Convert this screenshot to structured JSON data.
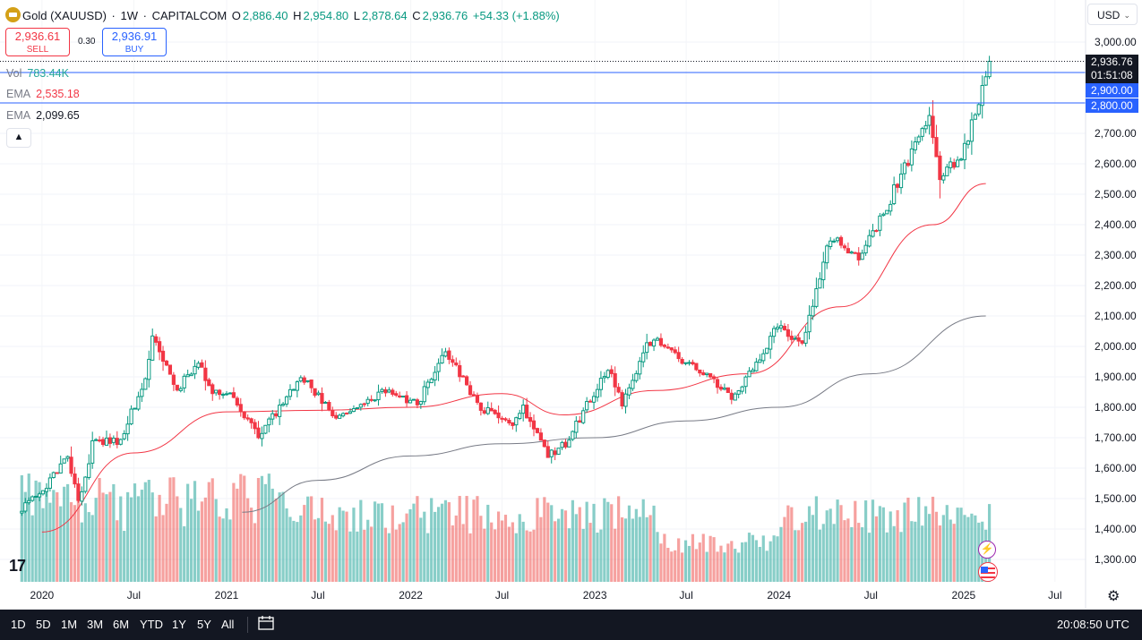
{
  "header": {
    "symbol_title": "Gold (XAUUSD)",
    "interval": "1W",
    "exchange": "CAPITALCOM",
    "open_label": "O",
    "open": "2,886.40",
    "high_label": "H",
    "high": "2,954.80",
    "low_label": "L",
    "low": "2,878.64",
    "close_label": "C",
    "close": "2,936.76",
    "change": "+54.33 (+1.88%)"
  },
  "quote": {
    "sell_price": "2,936.61",
    "sell_label": "SELL",
    "spread": "0.30",
    "buy_price": "2,936.91",
    "buy_label": "BUY"
  },
  "indicators": {
    "vol_label": "Vol",
    "vol_value": "783.44K",
    "ema1_label": "EMA",
    "ema1_value": "2,535.18",
    "ema2_label": "EMA",
    "ema2_value": "2,099.65"
  },
  "currency_button": "USD",
  "price_tags": {
    "last_price": "2,936.76",
    "countdown": "01:51:08",
    "line1": "2,900.00",
    "line2": "2,800.00"
  },
  "horizontal_lines": [
    2900,
    2800
  ],
  "time_labels": [
    "2020",
    "Jul",
    "2021",
    "Jul",
    "2022",
    "Jul",
    "2023",
    "Jul",
    "2024",
    "Jul",
    "2025",
    "Jul"
  ],
  "bottom_bar": {
    "ranges": [
      "1D",
      "5D",
      "1M",
      "3M",
      "6M",
      "YTD",
      "1Y",
      "5Y",
      "All"
    ],
    "clock": "20:08:50 UTC"
  },
  "colors": {
    "up": "#089981",
    "down": "#f23645",
    "ema_fast": "#f23645",
    "ema_slow": "#787b86",
    "line_blue": "#2962ff",
    "tag_dark": "#131722",
    "tag_blue": "#2962ff"
  },
  "chart_data": {
    "type": "candlestick",
    "title": "Gold (XAUUSD) 1W CAPITALCOM",
    "x_axis": {
      "labels": [
        "2020",
        "Jul",
        "2021",
        "Jul",
        "2022",
        "Jul",
        "2023",
        "Jul",
        "2024",
        "Jul",
        "2025",
        "Jul"
      ],
      "range": [
        "2019-11",
        "2025-08"
      ]
    },
    "y_axis": {
      "ticks": [
        3000,
        2900,
        2800,
        2700,
        2600,
        2500,
        2400,
        2300,
        2200,
        2100,
        2000,
        1900,
        1800,
        1700,
        1600,
        1500,
        1400,
        1300
      ],
      "range": [
        1225,
        3050
      ],
      "position": "right"
    },
    "close_anchors": [
      {
        "x": "2019-11-22",
        "y": 1465
      },
      {
        "x": "2019-12-27",
        "y": 1510
      },
      {
        "x": "2020-02-21",
        "y": 1640
      },
      {
        "x": "2020-03-16",
        "y": 1480
      },
      {
        "x": "2020-04-10",
        "y": 1680
      },
      {
        "x": "2020-06-05",
        "y": 1690
      },
      {
        "x": "2020-07-24",
        "y": 1900
      },
      {
        "x": "2020-08-07",
        "y": 2030
      },
      {
        "x": "2020-09-25",
        "y": 1860
      },
      {
        "x": "2020-11-06",
        "y": 1950
      },
      {
        "x": "2020-12-04",
        "y": 1840
      },
      {
        "x": "2021-01-08",
        "y": 1850
      },
      {
        "x": "2021-03-05",
        "y": 1700
      },
      {
        "x": "2021-05-28",
        "y": 1905
      },
      {
        "x": "2021-07-16",
        "y": 1810
      },
      {
        "x": "2021-08-13",
        "y": 1760
      },
      {
        "x": "2021-11-12",
        "y": 1860
      },
      {
        "x": "2022-01-14",
        "y": 1810
      },
      {
        "x": "2022-03-11",
        "y": 1990
      },
      {
        "x": "2022-05-13",
        "y": 1810
      },
      {
        "x": "2022-07-22",
        "y": 1730
      },
      {
        "x": "2022-08-12",
        "y": 1800
      },
      {
        "x": "2022-09-30",
        "y": 1640
      },
      {
        "x": "2022-11-04",
        "y": 1680
      },
      {
        "x": "2023-01-27",
        "y": 1930
      },
      {
        "x": "2023-02-24",
        "y": 1810
      },
      {
        "x": "2023-04-14",
        "y": 2005
      },
      {
        "x": "2023-05-05",
        "y": 2015
      },
      {
        "x": "2023-08-18",
        "y": 1890
      },
      {
        "x": "2023-10-06",
        "y": 1830
      },
      {
        "x": "2023-12-29",
        "y": 2065
      },
      {
        "x": "2024-02-16",
        "y": 2015
      },
      {
        "x": "2024-04-12",
        "y": 2360
      },
      {
        "x": "2024-06-07",
        "y": 2295
      },
      {
        "x": "2024-07-19",
        "y": 2410
      },
      {
        "x": "2024-09-27",
        "y": 2660
      },
      {
        "x": "2024-10-25",
        "y": 2750
      },
      {
        "x": "2024-11-15",
        "y": 2565
      },
      {
        "x": "2024-12-27",
        "y": 2620
      },
      {
        "x": "2025-01-31",
        "y": 2800
      },
      {
        "x": "2025-02-14",
        "y": 2882
      }
    ],
    "last_candle": {
      "open": 2886.4,
      "high": 2954.8,
      "low": 2878.64,
      "close": 2936.76
    },
    "ema_fast": {
      "name": "EMA",
      "last": 2535.18,
      "anchors": [
        {
          "x": "2020-01-01",
          "y": 1390
        },
        {
          "x": "2020-07-01",
          "y": 1650
        },
        {
          "x": "2021-01-01",
          "y": 1785
        },
        {
          "x": "2021-07-01",
          "y": 1790
        },
        {
          "x": "2022-01-01",
          "y": 1800
        },
        {
          "x": "2022-07-01",
          "y": 1845
        },
        {
          "x": "2022-11-01",
          "y": 1775
        },
        {
          "x": "2023-05-01",
          "y": 1855
        },
        {
          "x": "2023-11-01",
          "y": 1910
        },
        {
          "x": "2024-05-01",
          "y": 2130
        },
        {
          "x": "2024-11-01",
          "y": 2400
        },
        {
          "x": "2025-02-14",
          "y": 2535
        }
      ]
    },
    "ema_slow": {
      "name": "EMA",
      "last": 2099.65,
      "anchors": [
        {
          "x": "2021-02-01",
          "y": 1455
        },
        {
          "x": "2021-07-01",
          "y": 1560
        },
        {
          "x": "2022-01-01",
          "y": 1640
        },
        {
          "x": "2022-07-01",
          "y": 1680
        },
        {
          "x": "2023-01-01",
          "y": 1700
        },
        {
          "x": "2023-07-01",
          "y": 1755
        },
        {
          "x": "2024-01-01",
          "y": 1800
        },
        {
          "x": "2024-07-01",
          "y": 1910
        },
        {
          "x": "2025-02-14",
          "y": 2100
        }
      ]
    },
    "volume": {
      "last": "783.44K"
    }
  }
}
